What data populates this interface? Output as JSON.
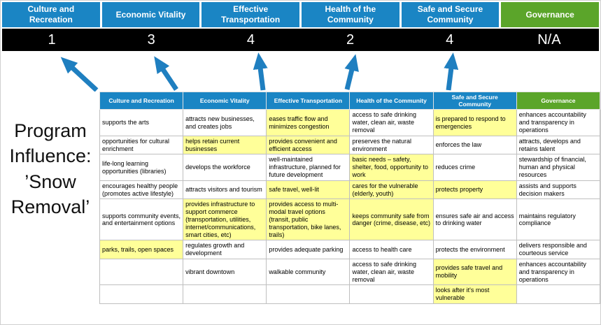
{
  "colors": {
    "header_blue": "#1a85c4",
    "header_green": "#5ba52a",
    "highlight_yellow": "#ffff99",
    "score_band": "#000000",
    "arrow_blue": "#1f7fc0",
    "grid_line": "#bfbfbf"
  },
  "title": {
    "lines": [
      "Program",
      "Influence:",
      "’Snow",
      "Removal’"
    ]
  },
  "pillars": [
    {
      "label": "Culture and Recreation",
      "score": "1",
      "theme": "blue"
    },
    {
      "label": "Economic Vitality",
      "score": "3",
      "theme": "blue"
    },
    {
      "label": "Effective Transportation",
      "score": "4",
      "theme": "blue"
    },
    {
      "label": "Health of the Community",
      "score": "2",
      "theme": "blue"
    },
    {
      "label": "Safe and Secure Community",
      "score": "4",
      "theme": "blue"
    },
    {
      "label": "Governance",
      "score": "N/A",
      "theme": "green"
    }
  ],
  "table": {
    "headers": [
      {
        "label": "Culture and Recreation",
        "theme": "blue"
      },
      {
        "label": "Economic Vitality",
        "theme": "blue"
      },
      {
        "label": "Effective Transportation",
        "theme": "blue"
      },
      {
        "label": "Health of the Community",
        "theme": "blue"
      },
      {
        "label": "Safe and Secure Community",
        "theme": "blue"
      },
      {
        "label": "Governance",
        "theme": "green"
      }
    ],
    "rows": [
      [
        {
          "text": "supports the arts",
          "highlight": false
        },
        {
          "text": "attracts new businesses, and creates jobs",
          "highlight": false
        },
        {
          "text": "eases traffic flow and minimizes congestion",
          "highlight": true
        },
        {
          "text": "access to safe drinking water, clean air, waste removal",
          "highlight": false
        },
        {
          "text": "is prepared to respond to emergencies",
          "highlight": true
        },
        {
          "text": "enhances accountability and transparency in operations",
          "highlight": false
        }
      ],
      [
        {
          "text": "opportunities for cultural enrichment",
          "highlight": false
        },
        {
          "text": "helps retain current businesses",
          "highlight": true
        },
        {
          "text": "provides convenient and efficient access",
          "highlight": true
        },
        {
          "text": "preserves the natural environment",
          "highlight": false
        },
        {
          "text": "enforces the law",
          "highlight": false
        },
        {
          "text": "attracts, develops and retains talent",
          "highlight": false
        }
      ],
      [
        {
          "text": "life-long learning opportunities (libraries)",
          "highlight": false
        },
        {
          "text": "develops the workforce",
          "highlight": false
        },
        {
          "text": "well-maintained infrastructure, planned for future development",
          "highlight": false
        },
        {
          "text": "basic needs – safety, shelter, food, opportunity to work",
          "highlight": true
        },
        {
          "text": "reduces crime",
          "highlight": false
        },
        {
          "text": "stewardship of financial, human and physical resources",
          "highlight": false
        }
      ],
      [
        {
          "text": "encourages healthy people (promotes active lifestyle)",
          "highlight": false
        },
        {
          "text": "attracts visitors and tourism",
          "highlight": false
        },
        {
          "text": "safe travel, well-lit",
          "highlight": true
        },
        {
          "text": "cares for the vulnerable (elderly, youth)",
          "highlight": true
        },
        {
          "text": "protects property",
          "highlight": true
        },
        {
          "text": "assists and supports decision makers",
          "highlight": false
        }
      ],
      [
        {
          "text": "supports community events, and entertainment options",
          "highlight": false
        },
        {
          "text": "provides infrastructure to support commerce (transportation, utilities, internet/communications, smart cities, etc)",
          "highlight": true
        },
        {
          "text": "provides access to multi-modal travel options (transit, public transportation, bike lanes, trails)",
          "highlight": true
        },
        {
          "text": "keeps community safe from danger (crime, disease, etc)",
          "highlight": true
        },
        {
          "text": "ensures safe air and access to drinking water",
          "highlight": false
        },
        {
          "text": "maintains regulatory compliance",
          "highlight": false
        }
      ],
      [
        {
          "text": "parks, trails, open spaces",
          "highlight": true
        },
        {
          "text": "regulates growth and development",
          "highlight": false
        },
        {
          "text": "provides adequate parking",
          "highlight": false
        },
        {
          "text": "access to health care",
          "highlight": false
        },
        {
          "text": "protects the environment",
          "highlight": false
        },
        {
          "text": "delivers responsible and courteous service",
          "highlight": false
        }
      ],
      [
        {
          "text": "",
          "highlight": false
        },
        {
          "text": "vibrant downtown",
          "highlight": false
        },
        {
          "text": "walkable community",
          "highlight": false
        },
        {
          "text": "access to safe drinking water, clean air, waste removal",
          "highlight": false
        },
        {
          "text": "provides safe travel and mobility",
          "highlight": true
        },
        {
          "text": "enhances accountability and transparency in operations",
          "highlight": false
        }
      ],
      [
        {
          "text": "",
          "highlight": false
        },
        {
          "text": "",
          "highlight": false
        },
        {
          "text": "",
          "highlight": false
        },
        {
          "text": "",
          "highlight": false
        },
        {
          "text": "looks after it's most vulnerable",
          "highlight": true
        },
        {
          "text": "",
          "highlight": false
        }
      ]
    ]
  }
}
